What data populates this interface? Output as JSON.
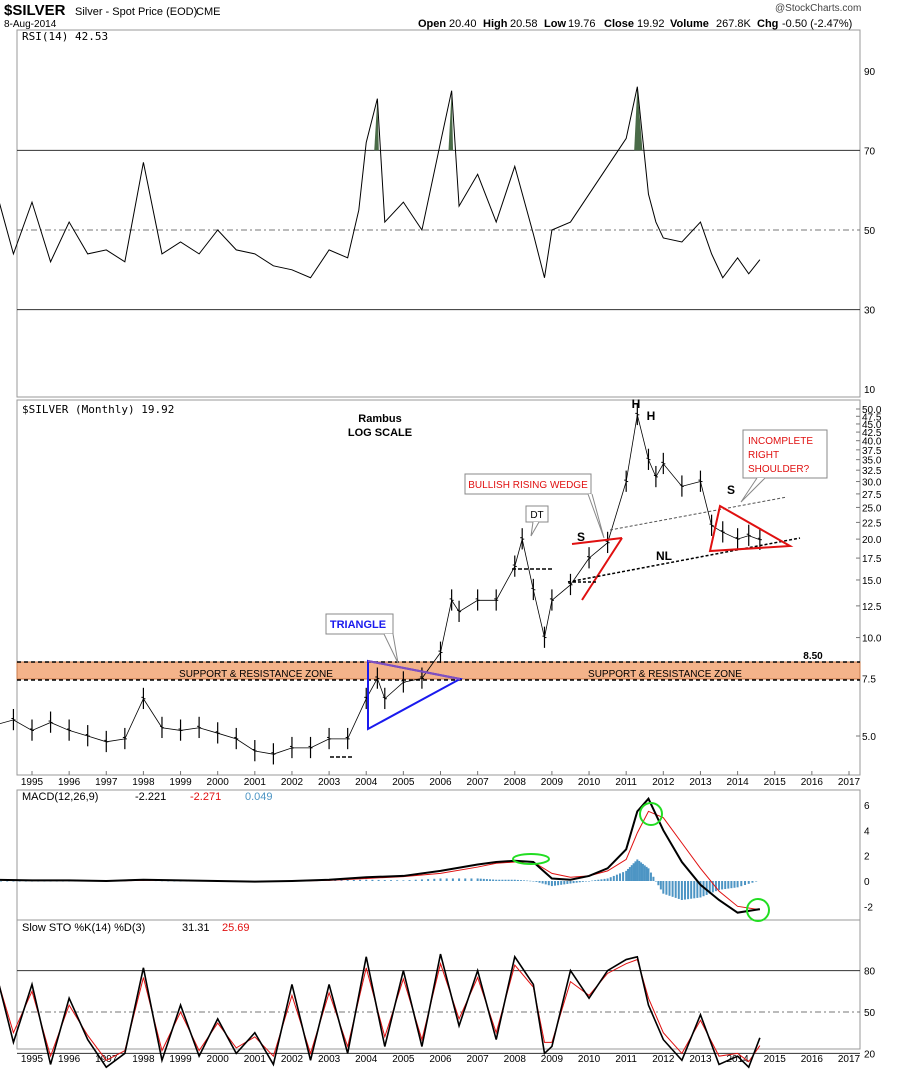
{
  "header": {
    "symbol": "$SILVER",
    "description": "Silver - Spot Price (EOD)",
    "exchange": "CME",
    "date": "8-Aug-2014",
    "open_label": "Open",
    "open": "20.40",
    "high_label": "High",
    "high": "20.58",
    "low_label": "Low",
    "low": "19.76",
    "close_label": "Close",
    "close": "19.92",
    "volume_label": "Volume",
    "volume": "267.8K",
    "chg_label": "Chg",
    "chg": "-0.50 (-2.47%)",
    "watermark": "@StockCharts.com"
  },
  "colors": {
    "price_bar": "#000000",
    "rsi_fill": "#4a6b48",
    "support_zone": "#f4b38a",
    "triangle": "#1a1aee",
    "pattern_red": "#e01010",
    "macd_line": "#000000",
    "signal_line": "#e01010",
    "histogram": "#4d95c4",
    "highlight_circle": "#22dd22",
    "sto_k": "#000000",
    "sto_d": "#e01010"
  },
  "chart_data": [
    {
      "type": "line",
      "panel": "RSI",
      "legend": "RSI(14) 42.53",
      "ylim": [
        0,
        100
      ],
      "yticks": [
        90,
        70,
        50,
        30,
        10
      ],
      "reference_lines": [
        70,
        50,
        30
      ],
      "x": [
        1994.0,
        1994.5,
        1995.0,
        1995.5,
        1996.0,
        1996.5,
        1997.0,
        1997.5,
        1998.0,
        1998.5,
        1999.0,
        1999.5,
        2000.0,
        2000.5,
        2001.0,
        2001.5,
        2002.0,
        2002.5,
        2003.0,
        2003.5,
        2003.8,
        2004.0,
        2004.3,
        2004.5,
        2005.0,
        2005.5,
        2006.0,
        2006.3,
        2006.5,
        2007.0,
        2007.5,
        2008.0,
        2008.5,
        2008.8,
        2009.0,
        2009.5,
        2010.0,
        2010.5,
        2011.0,
        2011.3,
        2011.6,
        2011.8,
        2012.0,
        2012.5,
        2013.0,
        2013.3,
        2013.6,
        2014.0,
        2014.3,
        2014.6
      ],
      "values": [
        61,
        44,
        57,
        42,
        52,
        44,
        45,
        42,
        67,
        44,
        47,
        44,
        50,
        45,
        44,
        41,
        40,
        38,
        45,
        43,
        55,
        72,
        83,
        52,
        57,
        50,
        72,
        85,
        56,
        64,
        52,
        66,
        49,
        38,
        50,
        52,
        59,
        66,
        73,
        86,
        59,
        52,
        48,
        47,
        52,
        44,
        38,
        43,
        39,
        42.53
      ]
    },
    {
      "type": "bar",
      "panel": "Price",
      "legend": "$SILVER (Monthly) 19.92",
      "scale": "log",
      "ylim": [
        3.6,
        50
      ],
      "yticks": [
        50.0,
        47.5,
        45.0,
        42.5,
        40.0,
        37.5,
        35.0,
        32.5,
        30.0,
        27.5,
        25.0,
        22.5,
        20.0,
        17.5,
        15.0,
        12.5,
        10.0,
        7.5,
        5.0
      ],
      "x_tick_labels": [
        "1995",
        "1996",
        "1997",
        "1998",
        "1999",
        "2000",
        "2001",
        "2002",
        "2003",
        "2004",
        "2005",
        "2006",
        "2007",
        "2008",
        "2009",
        "2010",
        "2011",
        "2012",
        "2013",
        "2014",
        "2015",
        "2016",
        "2017"
      ],
      "x": [
        1994.0,
        1994.5,
        1995.0,
        1995.5,
        1996.0,
        1996.5,
        1997.0,
        1997.5,
        1998.0,
        1998.5,
        1999.0,
        1999.5,
        2000.0,
        2000.5,
        2001.0,
        2001.5,
        2002.0,
        2002.5,
        2003.0,
        2003.5,
        2004.0,
        2004.3,
        2004.5,
        2005.0,
        2005.5,
        2006.0,
        2006.3,
        2006.5,
        2007.0,
        2007.5,
        2008.0,
        2008.2,
        2008.5,
        2008.8,
        2009.0,
        2009.5,
        2010.0,
        2010.5,
        2011.0,
        2011.3,
        2011.6,
        2011.8,
        2012.0,
        2012.5,
        2013.0,
        2013.3,
        2013.6,
        2014.0,
        2014.3,
        2014.6
      ],
      "values": [
        5.4,
        5.6,
        5.2,
        5.5,
        5.2,
        5.0,
        4.8,
        4.9,
        6.5,
        5.3,
        5.2,
        5.3,
        5.1,
        4.9,
        4.5,
        4.4,
        4.6,
        4.6,
        4.9,
        4.9,
        6.5,
        7.5,
        6.5,
        7.3,
        7.5,
        9.0,
        13.0,
        12.0,
        13.0,
        13.0,
        16.5,
        20.0,
        14.0,
        10.0,
        13.0,
        14.5,
        17.5,
        19.5,
        30.0,
        48.0,
        35.0,
        31.0,
        34.0,
        29.0,
        30.0,
        22.0,
        21.0,
        20.0,
        20.5,
        19.92
      ],
      "annotations": [
        "Rambus",
        "LOG SCALE",
        "H",
        "H",
        "S",
        "S",
        "DT",
        "NL",
        "TRIANGLE",
        "BULLISH RISING WEDGE",
        "INCOMPLETE",
        "RIGHT",
        "SHOULDER?",
        "SUPPORT & RESISTANCE ZONE",
        "SUPPORT & RESISTANCE ZONE",
        "8.50"
      ]
    },
    {
      "type": "line",
      "panel": "MACD",
      "legend": "MACD(12,26,9)",
      "legend_values": [
        "-2.221",
        "-2.271",
        "0.049"
      ],
      "ylim": [
        -3,
        7
      ],
      "yticks": [
        6,
        4,
        2,
        0,
        -2
      ],
      "x": [
        1994.0,
        1995.0,
        1996.0,
        1997.0,
        1998.0,
        1999.0,
        2000.0,
        2001.0,
        2002.0,
        2003.0,
        2004.0,
        2005.0,
        2006.0,
        2007.0,
        2007.5,
        2008.0,
        2008.5,
        2009.0,
        2009.5,
        2010.0,
        2010.5,
        2011.0,
        2011.3,
        2011.6,
        2012.0,
        2012.5,
        2013.0,
        2013.5,
        2014.0,
        2014.6
      ],
      "series": [
        {
          "name": "MACD",
          "values": [
            0.1,
            0.05,
            0.05,
            0.0,
            0.1,
            0.05,
            0.0,
            -0.05,
            0.0,
            0.1,
            0.3,
            0.4,
            0.8,
            1.3,
            1.5,
            1.6,
            1.5,
            0.2,
            0.1,
            0.4,
            1.0,
            2.5,
            5.5,
            6.5,
            4.0,
            1.5,
            -0.3,
            -1.5,
            -2.5,
            -2.221
          ]
        },
        {
          "name": "Signal",
          "values": [
            0.1,
            0.05,
            0.05,
            0.0,
            0.05,
            0.05,
            0.0,
            -0.05,
            0.0,
            0.05,
            0.2,
            0.35,
            0.6,
            1.1,
            1.4,
            1.5,
            1.5,
            0.6,
            0.3,
            0.4,
            0.8,
            1.7,
            3.8,
            5.5,
            5.0,
            3.0,
            1.0,
            -0.8,
            -2.0,
            -2.271
          ]
        }
      ]
    },
    {
      "type": "line",
      "panel": "Slow STO",
      "legend": "Slow STO %K(14) %D(3)",
      "legend_values": [
        "31.31",
        "25.69"
      ],
      "ylim": [
        0,
        100
      ],
      "yticks": [
        80,
        50,
        20
      ],
      "reference_lines": [
        80,
        50,
        20
      ],
      "x": [
        1994.0,
        1994.5,
        1995.0,
        1995.5,
        1996.0,
        1996.5,
        1997.0,
        1997.5,
        1998.0,
        1998.5,
        1999.0,
        1999.5,
        2000.0,
        2000.5,
        2001.0,
        2001.5,
        2002.0,
        2002.5,
        2003.0,
        2003.5,
        2004.0,
        2004.5,
        2005.0,
        2005.5,
        2006.0,
        2006.5,
        2007.0,
        2007.5,
        2008.0,
        2008.5,
        2008.8,
        2009.0,
        2009.5,
        2010.0,
        2010.5,
        2011.0,
        2011.3,
        2011.6,
        2012.0,
        2012.5,
        2013.0,
        2013.5,
        2014.0,
        2014.3,
        2014.6
      ],
      "series": [
        {
          "name": "%K",
          "values": [
            82,
            28,
            70,
            12,
            60,
            30,
            10,
            20,
            82,
            15,
            55,
            18,
            45,
            20,
            35,
            12,
            70,
            15,
            70,
            20,
            90,
            25,
            80,
            25,
            92,
            40,
            80,
            30,
            90,
            70,
            20,
            25,
            80,
            60,
            80,
            88,
            90,
            55,
            30,
            15,
            48,
            12,
            18,
            10,
            31.31
          ]
        },
        {
          "name": "%D",
          "values": [
            80,
            35,
            65,
            18,
            55,
            33,
            15,
            22,
            75,
            22,
            50,
            22,
            42,
            24,
            32,
            18,
            62,
            20,
            64,
            25,
            82,
            32,
            74,
            30,
            85,
            45,
            75,
            35,
            84,
            68,
            28,
            28,
            72,
            62,
            78,
            85,
            88,
            60,
            35,
            20,
            44,
            18,
            20,
            14,
            25.69
          ]
        }
      ]
    }
  ]
}
